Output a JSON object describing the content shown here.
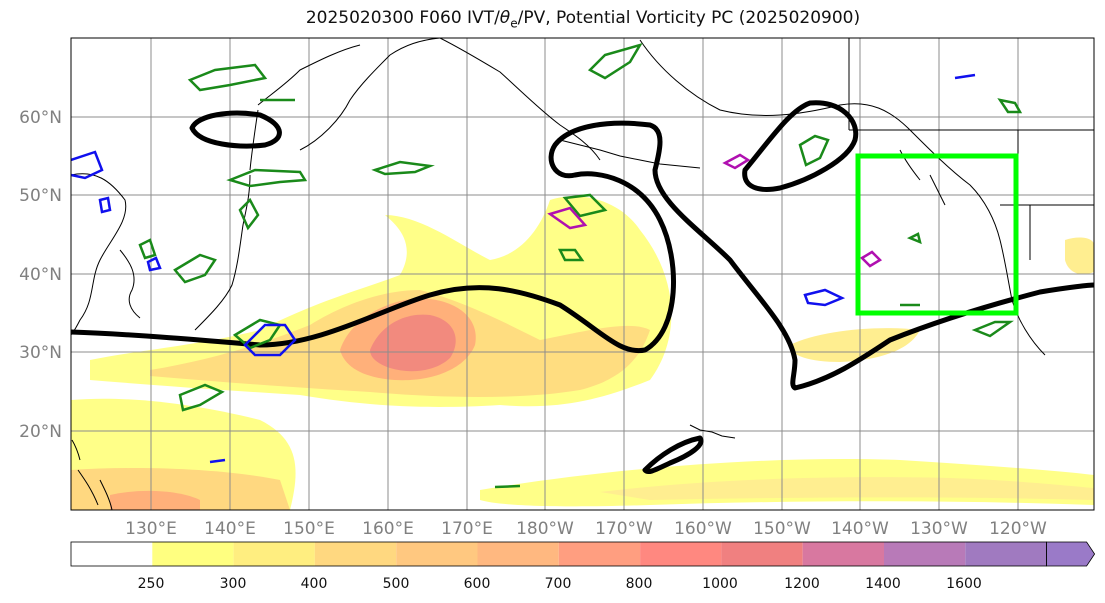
{
  "title": {
    "prefix": "2025020300 F060 IVT/",
    "theta": "θ",
    "sub": "e",
    "suffix": "/PV, Potential Vorticity PC (2025020900)"
  },
  "map": {
    "lat_labels": [
      "60°N",
      "50°N",
      "40°N",
      "30°N",
      "20°N"
    ],
    "lon_labels": [
      "130°E",
      "140°E",
      "150°E",
      "160°E",
      "170°E",
      "180°W",
      "170°W",
      "160°W",
      "150°W",
      "140°W",
      "130°W",
      "120°W"
    ],
    "colors": {
      "thick_contour": "#000000",
      "pv_contour_green": "#1a8a1a",
      "pv_contour_blue": "#1010ee",
      "pv_contour_magenta": "#b010b0",
      "box": "#00ff00"
    }
  },
  "colorbar": {
    "levels": [
      "250",
      "300",
      "400",
      "500",
      "600",
      "700",
      "800",
      "1000",
      "1200",
      "1400",
      "1600"
    ],
    "colors": [
      "#ffffff",
      "#ffff80",
      "#ffee80",
      "#ffd880",
      "#ffc880",
      "#ffb880",
      "#ff9e80",
      "#ff8880",
      "#f08080",
      "#d878a0",
      "#b87ab8",
      "#a07ac0",
      "#9a7ac8"
    ]
  }
}
